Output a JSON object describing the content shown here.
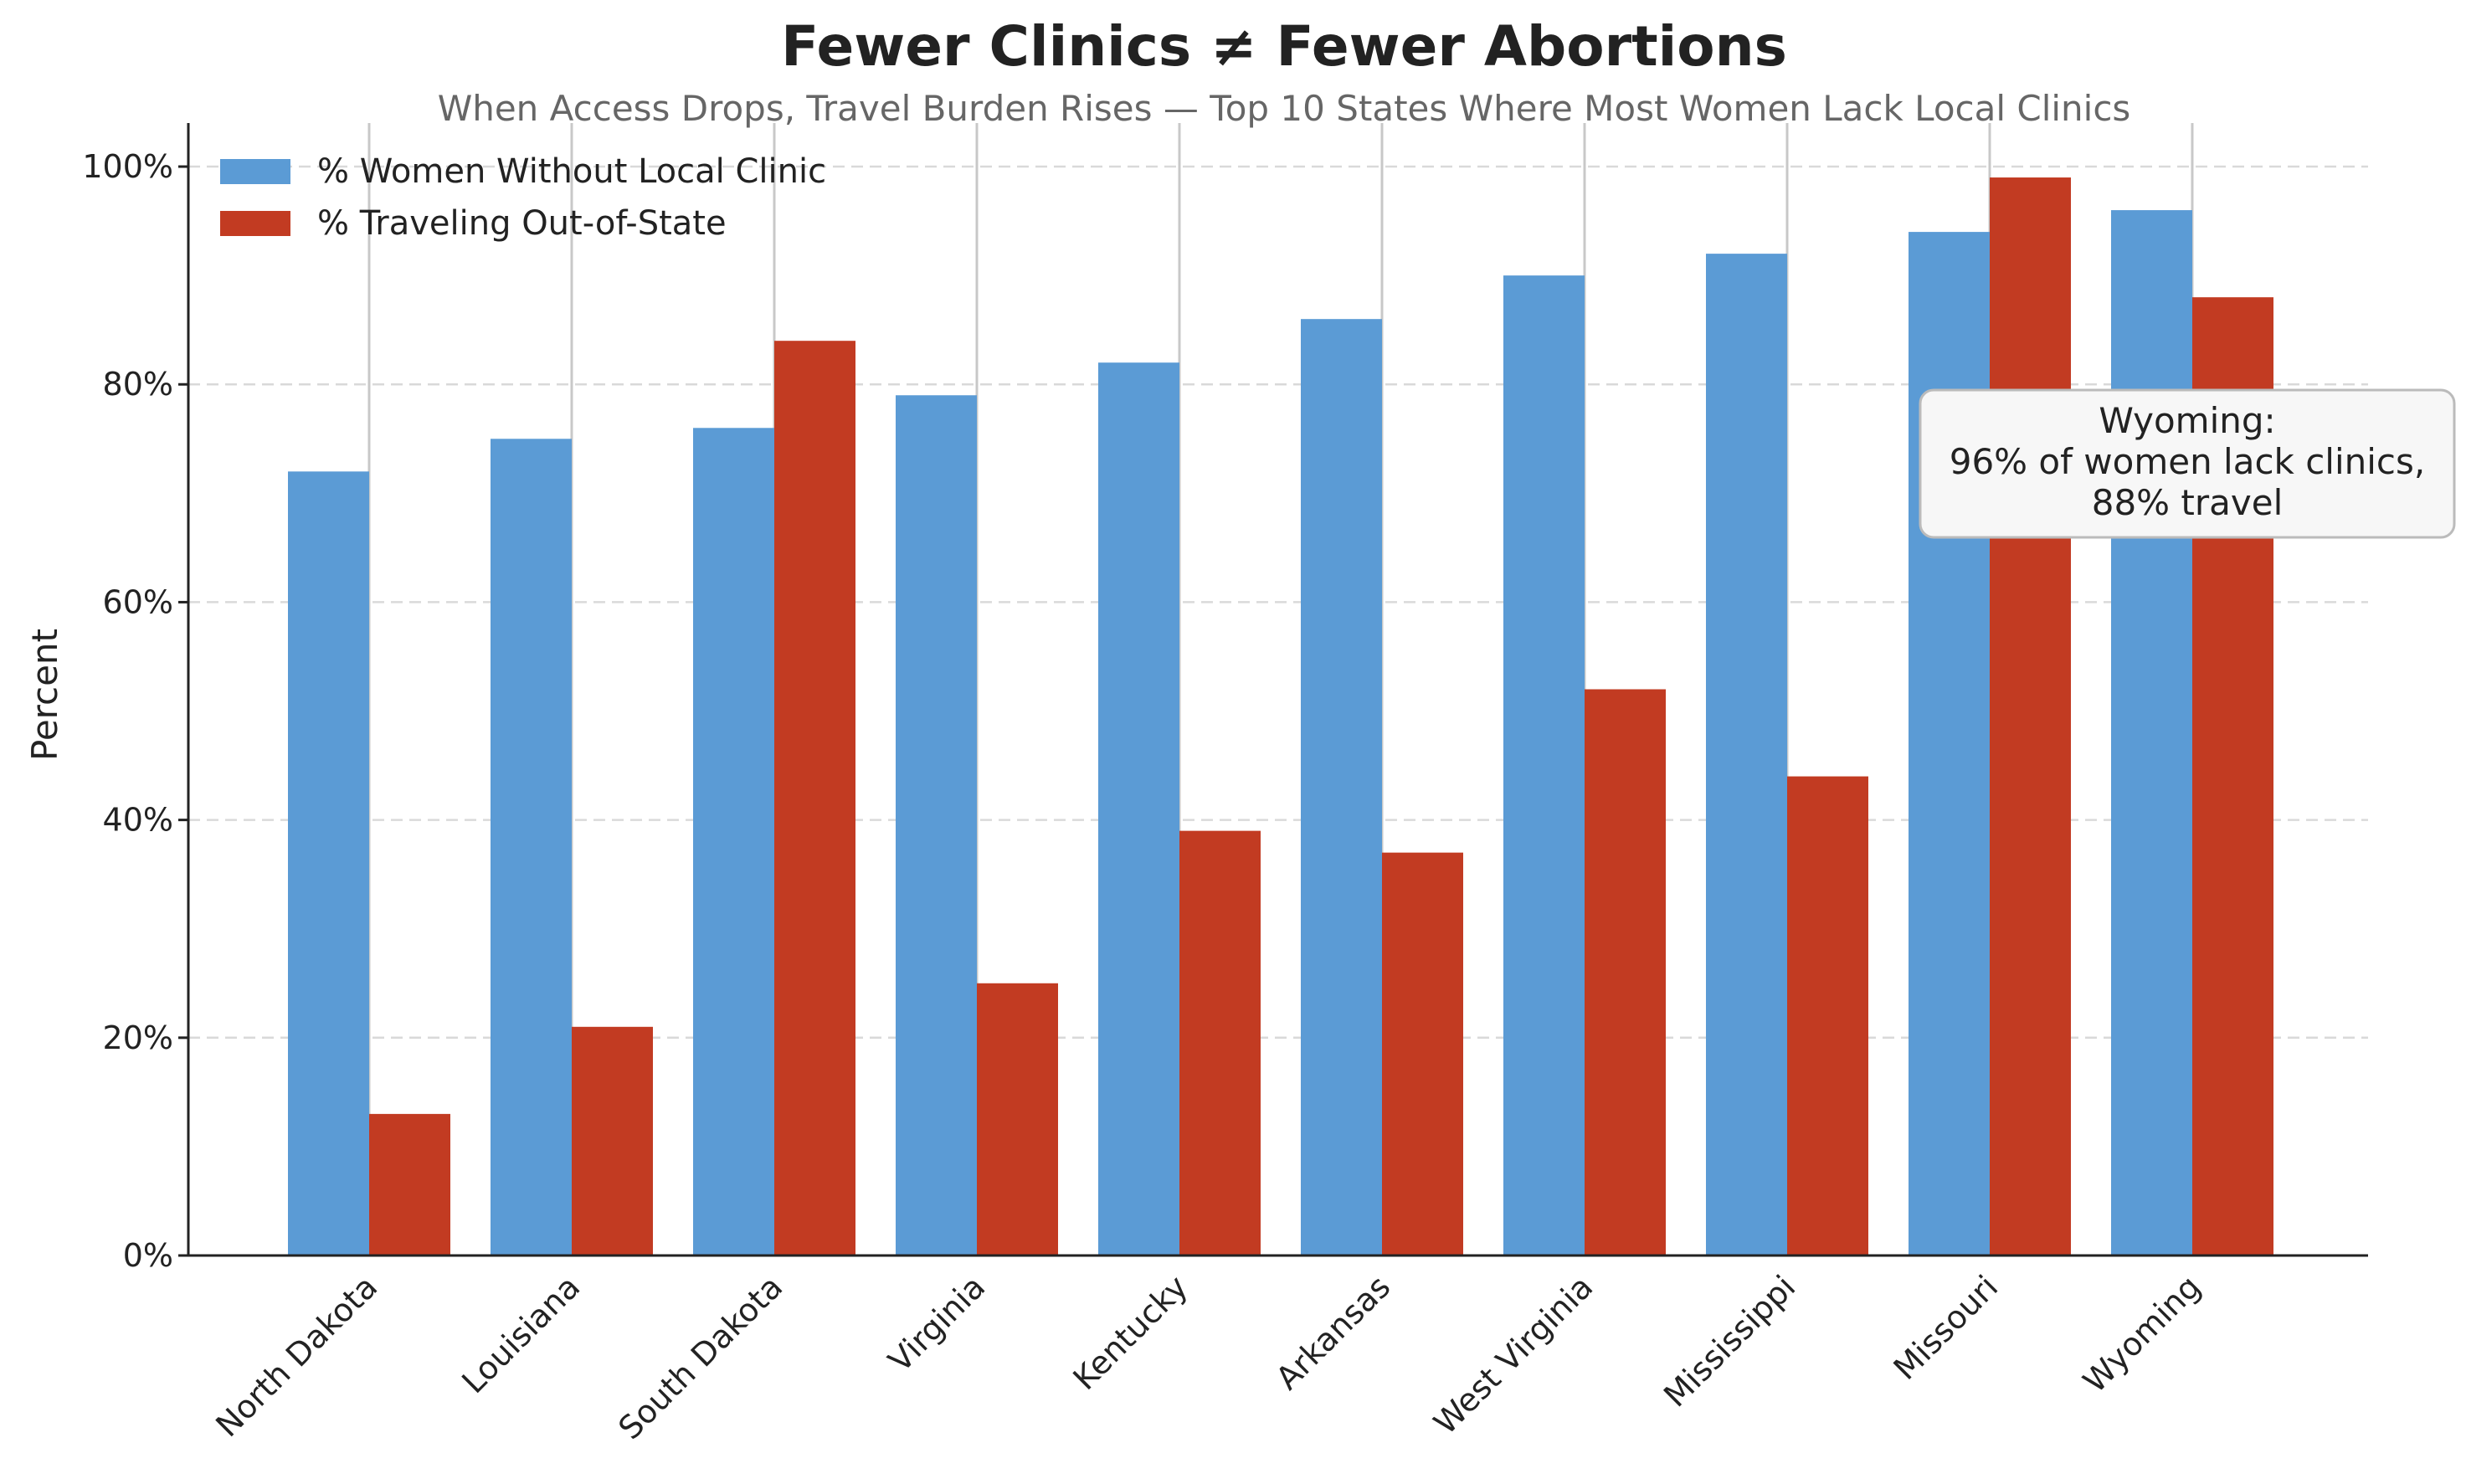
{
  "chart_data": {
    "type": "bar",
    "title": "Fewer Clinics ≠ Fewer Abortions",
    "subtitle": "When Access Drops, Travel Burden Rises — Top 10 States Where Most Women Lack Local Clinics",
    "xlabel": "",
    "ylabel": "Percent",
    "ylim": [
      0,
      104
    ],
    "yticks": [
      0,
      20,
      40,
      60,
      80,
      100
    ],
    "ytick_labels": [
      "0%",
      "20%",
      "40%",
      "60%",
      "80%",
      "100%"
    ],
    "grid": "horizontal dashed",
    "legend_position": "top-left",
    "categories": [
      "North Dakota",
      "Louisiana",
      "South Dakota",
      "Virginia",
      "Kentucky",
      "Arkansas",
      "West Virginia",
      "Mississippi",
      "Missouri",
      "Wyoming"
    ],
    "series": [
      {
        "name": "% Women Without Local Clinic",
        "color": "#5b9bd5",
        "values": [
          72,
          75,
          76,
          79,
          82,
          86,
          90,
          92,
          94,
          96
        ]
      },
      {
        "name": "% Traveling Out-of-State",
        "color": "#c23b22",
        "values": [
          13,
          21,
          84,
          25,
          39,
          37,
          52,
          44,
          99,
          88
        ]
      }
    ],
    "annotation": {
      "lines": [
        "Wyoming:",
        "96% of women lack clinics,",
        "88% travel"
      ]
    }
  }
}
